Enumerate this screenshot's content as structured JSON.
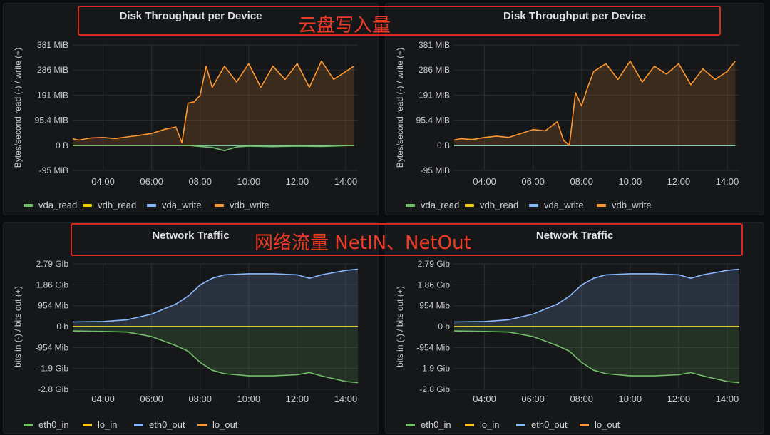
{
  "annotations": {
    "disk": "云盘写入量",
    "network": "网络流量 NetIN、NetOut"
  },
  "colors": {
    "vda_read": "#73bf69",
    "vdb_read": "#f2cc0c",
    "vda_write": "#8ab8ff",
    "vdb_write": "#ff9830",
    "eth0_in": "#73bf69",
    "lo_in": "#f2cc0c",
    "eth0_out": "#8ab8ff",
    "lo_out": "#ff9830",
    "disk_zero_line": "#8fd7c0",
    "annotation": "#d8291d"
  },
  "chart_data": [
    {
      "type": "area",
      "title": "Disk Throughput per Device",
      "ylabel": "Bytes/second read (-) / write (+)",
      "x_ticks": [
        "04:00",
        "06:00",
        "08:00",
        "10:00",
        "12:00",
        "14:00"
      ],
      "x_range": [
        "02:45",
        "14:30"
      ],
      "y_ticks": [
        "381 MiB",
        "286 MiB",
        "191 MiB",
        "95.4 MiB",
        "0 B",
        "-95 MiB"
      ],
      "ylim": [
        -95,
        381
      ],
      "legend": [
        "vda_read",
        "vdb_read",
        "vda_write",
        "vdb_write"
      ],
      "legend_position": "bottom-left",
      "grid": true,
      "series": [
        {
          "name": "vdb_write",
          "unit": "MiB",
          "x": [
            "02:45",
            "03:00",
            "03:30",
            "04:00",
            "04:30",
            "05:00",
            "05:30",
            "06:00",
            "06:30",
            "07:00",
            "07:15",
            "07:30",
            "07:45",
            "08:00",
            "08:15",
            "08:30",
            "09:00",
            "09:30",
            "10:00",
            "10:30",
            "11:00",
            "11:30",
            "12:00",
            "12:30",
            "13:00",
            "13:30",
            "14:00",
            "14:20"
          ],
          "values": [
            25,
            20,
            28,
            30,
            26,
            32,
            38,
            45,
            60,
            70,
            10,
            160,
            165,
            190,
            300,
            220,
            300,
            240,
            310,
            220,
            300,
            250,
            310,
            220,
            320,
            250,
            280,
            300
          ]
        },
        {
          "name": "vda_read",
          "unit": "MiB",
          "x": [
            "02:45",
            "07:30",
            "08:00",
            "08:30",
            "09:00",
            "09:30",
            "10:00",
            "11:00",
            "12:00",
            "13:00",
            "14:20"
          ],
          "values": [
            0,
            0,
            -4,
            -8,
            -20,
            -6,
            -3,
            -5,
            -3,
            -4,
            0
          ]
        },
        {
          "name": "vdb_read",
          "unit": "MiB",
          "x": [
            "02:45",
            "14:20"
          ],
          "values": [
            0,
            0
          ]
        },
        {
          "name": "vda_write",
          "unit": "MiB",
          "x": [
            "02:45",
            "14:20"
          ],
          "values": [
            0,
            0
          ]
        }
      ]
    },
    {
      "type": "area",
      "title": "Disk Throughput per Device",
      "ylabel": "Bytes/second read (-) / write (+)",
      "x_ticks": [
        "04:00",
        "06:00",
        "08:00",
        "10:00",
        "12:00",
        "14:00"
      ],
      "x_range": [
        "02:45",
        "14:30"
      ],
      "y_ticks": [
        "381 MiB",
        "286 MiB",
        "191 MiB",
        "95.4 MiB",
        "0 B",
        "-95 MiB"
      ],
      "ylim": [
        -95,
        381
      ],
      "legend": [
        "vda_read",
        "vdb_read",
        "vda_write",
        "vdb_write"
      ],
      "legend_position": "bottom-left",
      "grid": true,
      "series": [
        {
          "name": "vdb_write",
          "unit": "MiB",
          "x": [
            "02:45",
            "03:00",
            "03:30",
            "04:00",
            "04:30",
            "05:00",
            "05:30",
            "06:00",
            "06:30",
            "07:00",
            "07:15",
            "07:30",
            "07:45",
            "08:00",
            "08:15",
            "08:30",
            "09:00",
            "09:30",
            "10:00",
            "10:30",
            "11:00",
            "11:30",
            "12:00",
            "12:30",
            "13:00",
            "13:30",
            "14:00",
            "14:20"
          ],
          "values": [
            20,
            25,
            22,
            30,
            35,
            30,
            45,
            60,
            55,
            90,
            20,
            0,
            200,
            150,
            220,
            280,
            310,
            250,
            320,
            240,
            300,
            270,
            310,
            230,
            290,
            250,
            280,
            320
          ]
        },
        {
          "name": "vda_read",
          "unit": "MiB",
          "x": [
            "02:45",
            "14:20"
          ],
          "values": [
            0,
            0
          ]
        },
        {
          "name": "vdb_read",
          "unit": "MiB",
          "x": [
            "02:45",
            "14:20"
          ],
          "values": [
            0,
            0
          ]
        },
        {
          "name": "vda_write",
          "unit": "MiB",
          "x": [
            "02:45",
            "14:20"
          ],
          "values": [
            0,
            0
          ]
        }
      ]
    },
    {
      "type": "area",
      "title": "Network Traffic",
      "ylabel": "bits in (-) / bits out (+)",
      "x_ticks": [
        "04:00",
        "06:00",
        "08:00",
        "10:00",
        "12:00",
        "14:00"
      ],
      "x_range": [
        "02:45",
        "14:30"
      ],
      "y_ticks": [
        "2.79 Gib",
        "1.86 Gib",
        "954 Mib",
        "0 b",
        "-954 Mib",
        "-1.9 Gib",
        "-2.8 Gib"
      ],
      "ylim": [
        -2.8,
        2.79
      ],
      "legend": [
        "eth0_in",
        "lo_in",
        "eth0_out",
        "lo_out"
      ],
      "legend_position": "bottom-left",
      "grid": true,
      "series": [
        {
          "name": "eth0_out",
          "unit": "Gib",
          "x": [
            "02:45",
            "04:00",
            "05:00",
            "06:00",
            "07:00",
            "07:30",
            "08:00",
            "08:30",
            "09:00",
            "10:00",
            "11:00",
            "12:00",
            "12:30",
            "13:00",
            "14:00",
            "14:30"
          ],
          "values": [
            0.2,
            0.22,
            0.3,
            0.55,
            1.0,
            1.35,
            1.85,
            2.15,
            2.3,
            2.35,
            2.35,
            2.3,
            2.15,
            2.3,
            2.5,
            2.55
          ]
        },
        {
          "name": "eth0_in",
          "unit": "Gib",
          "x": [
            "02:45",
            "04:00",
            "05:00",
            "06:00",
            "07:00",
            "07:30",
            "08:00",
            "08:30",
            "09:00",
            "10:00",
            "11:00",
            "12:00",
            "12:30",
            "13:00",
            "14:00",
            "14:30"
          ],
          "values": [
            -0.2,
            -0.22,
            -0.25,
            -0.45,
            -0.85,
            -1.1,
            -1.6,
            -1.95,
            -2.1,
            -2.2,
            -2.2,
            -2.15,
            -2.05,
            -2.2,
            -2.45,
            -2.5
          ]
        },
        {
          "name": "lo_in",
          "unit": "Gib",
          "x": [
            "02:45",
            "14:30"
          ],
          "values": [
            0,
            0
          ]
        },
        {
          "name": "lo_out",
          "unit": "Gib",
          "x": [
            "02:45",
            "14:30"
          ],
          "values": [
            0,
            0
          ]
        }
      ]
    },
    {
      "type": "area",
      "title": "Network Traffic",
      "ylabel": "bits in (-) / bits out (+)",
      "x_ticks": [
        "04:00",
        "06:00",
        "08:00",
        "10:00",
        "12:00",
        "14:00"
      ],
      "x_range": [
        "02:45",
        "14:30"
      ],
      "y_ticks": [
        "2.79 Gib",
        "1.86 Gib",
        "954 Mib",
        "0 b",
        "-954 Mib",
        "-1.9 Gib",
        "-2.8 Gib"
      ],
      "ylim": [
        -2.8,
        2.79
      ],
      "legend": [
        "eth0_in",
        "lo_in",
        "eth0_out",
        "lo_out"
      ],
      "legend_position": "bottom-left",
      "grid": true,
      "series": [
        {
          "name": "eth0_out",
          "unit": "Gib",
          "x": [
            "02:45",
            "04:00",
            "05:00",
            "06:00",
            "07:00",
            "07:30",
            "08:00",
            "08:30",
            "09:00",
            "10:00",
            "11:00",
            "12:00",
            "12:30",
            "13:00",
            "14:00",
            "14:30"
          ],
          "values": [
            0.2,
            0.22,
            0.3,
            0.55,
            1.0,
            1.35,
            1.85,
            2.15,
            2.3,
            2.35,
            2.35,
            2.3,
            2.15,
            2.3,
            2.5,
            2.55
          ]
        },
        {
          "name": "eth0_in",
          "unit": "Gib",
          "x": [
            "02:45",
            "04:00",
            "05:00",
            "06:00",
            "07:00",
            "07:30",
            "08:00",
            "08:30",
            "09:00",
            "10:00",
            "11:00",
            "12:00",
            "12:30",
            "13:00",
            "14:00",
            "14:30"
          ],
          "values": [
            -0.2,
            -0.22,
            -0.25,
            -0.45,
            -0.85,
            -1.1,
            -1.6,
            -1.95,
            -2.1,
            -2.2,
            -2.2,
            -2.15,
            -2.05,
            -2.2,
            -2.45,
            -2.5
          ]
        },
        {
          "name": "lo_in",
          "unit": "Gib",
          "x": [
            "02:45",
            "14:30"
          ],
          "values": [
            0,
            0
          ]
        },
        {
          "name": "lo_out",
          "unit": "Gib",
          "x": [
            "02:45",
            "14:30"
          ],
          "values": [
            0,
            0
          ]
        }
      ]
    }
  ]
}
